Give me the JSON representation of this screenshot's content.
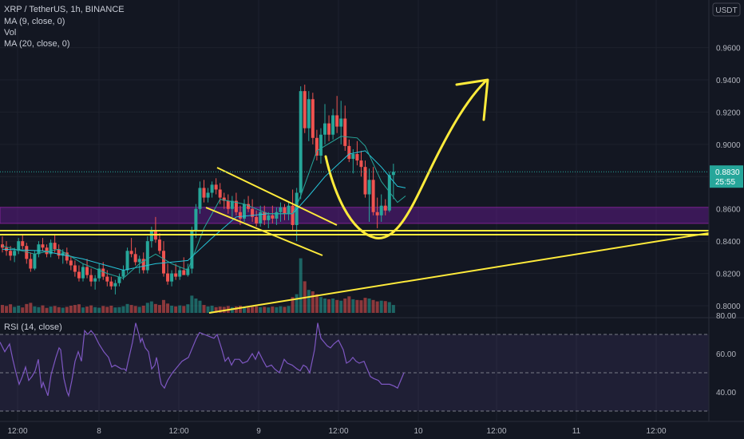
{
  "header": {
    "symbol": "XRP / TetherUS, 1h, BINANCE",
    "indicators": [
      "MA (9, close, 0)",
      "Vol",
      "MA (20, close, 0)"
    ]
  },
  "price_pane": {
    "currency": "USDT",
    "current_price": "0.8830",
    "countdown": "25:55",
    "yticks": [
      "0.9600",
      "0.9400",
      "0.9200",
      "0.9000",
      "0.8600",
      "0.8400",
      "0.8200",
      "0.8000"
    ]
  },
  "rsi_pane": {
    "title": "RSI (14, close)",
    "yticks": [
      "80.00",
      "60.00",
      "40.00"
    ]
  },
  "xaxis": {
    "ticks": [
      "12:00",
      "8",
      "12:00",
      "9",
      "12:00",
      "10",
      "12:00",
      "11",
      "12:00"
    ]
  },
  "colors": {
    "background": "#131722",
    "up": "#26a69a",
    "down": "#ef5350",
    "ma9": "#26a69a",
    "ma20": "#26c6da",
    "rsi": "#7e57c2",
    "zone": "#6a1b9a",
    "drawing": "#ffeb3b",
    "price_label_bg": "#26a69a"
  },
  "chart_data": [
    {
      "type": "candlestick",
      "title": "XRP / TetherUS, 1h, BINANCE",
      "ylim": [
        0.795,
        0.975
      ],
      "y_unit": "USDT",
      "x_ticks": [
        "12:00",
        "8",
        "12:00",
        "9",
        "12:00",
        "10",
        "12:00",
        "11",
        "12:00"
      ],
      "candles": [
        [
          0.838,
          0.843,
          0.833,
          0.836
        ],
        [
          0.836,
          0.84,
          0.831,
          0.834
        ],
        [
          0.834,
          0.837,
          0.828,
          0.831
        ],
        [
          0.831,
          0.836,
          0.827,
          0.834
        ],
        [
          0.834,
          0.842,
          0.832,
          0.84
        ],
        [
          0.84,
          0.844,
          0.835,
          0.837
        ],
        [
          0.837,
          0.839,
          0.826,
          0.829
        ],
        [
          0.829,
          0.833,
          0.821,
          0.823
        ],
        [
          0.823,
          0.834,
          0.822,
          0.832
        ],
        [
          0.832,
          0.84,
          0.83,
          0.838
        ],
        [
          0.838,
          0.842,
          0.834,
          0.836
        ],
        [
          0.836,
          0.838,
          0.83,
          0.832
        ],
        [
          0.832,
          0.841,
          0.83,
          0.839
        ],
        [
          0.839,
          0.844,
          0.833,
          0.835
        ],
        [
          0.835,
          0.838,
          0.829,
          0.831
        ],
        [
          0.831,
          0.835,
          0.826,
          0.833
        ],
        [
          0.833,
          0.836,
          0.826,
          0.828
        ],
        [
          0.828,
          0.831,
          0.822,
          0.825
        ],
        [
          0.825,
          0.828,
          0.818,
          0.821
        ],
        [
          0.821,
          0.825,
          0.815,
          0.817
        ],
        [
          0.817,
          0.826,
          0.815,
          0.824
        ],
        [
          0.824,
          0.829,
          0.817,
          0.819
        ],
        [
          0.819,
          0.823,
          0.812,
          0.815
        ],
        [
          0.815,
          0.819,
          0.81,
          0.817
        ],
        [
          0.817,
          0.826,
          0.815,
          0.823
        ],
        [
          0.823,
          0.827,
          0.816,
          0.818
        ],
        [
          0.818,
          0.822,
          0.812,
          0.815
        ],
        [
          0.815,
          0.818,
          0.81,
          0.812
        ],
        [
          0.812,
          0.816,
          0.807,
          0.814
        ],
        [
          0.814,
          0.82,
          0.812,
          0.818
        ],
        [
          0.818,
          0.825,
          0.816,
          0.822
        ],
        [
          0.822,
          0.836,
          0.82,
          0.834
        ],
        [
          0.834,
          0.842,
          0.83,
          0.832
        ],
        [
          0.832,
          0.836,
          0.825,
          0.827
        ],
        [
          0.827,
          0.831,
          0.82,
          0.829
        ],
        [
          0.829,
          0.833,
          0.82,
          0.822
        ],
        [
          0.822,
          0.843,
          0.82,
          0.84
        ],
        [
          0.84,
          0.849,
          0.836,
          0.846
        ],
        [
          0.846,
          0.855,
          0.839,
          0.841
        ],
        [
          0.841,
          0.845,
          0.832,
          0.834
        ],
        [
          0.834,
          0.84,
          0.818,
          0.82
        ],
        [
          0.82,
          0.826,
          0.813,
          0.815
        ],
        [
          0.815,
          0.822,
          0.812,
          0.82
        ],
        [
          0.82,
          0.826,
          0.816,
          0.818
        ],
        [
          0.818,
          0.824,
          0.816,
          0.822
        ],
        [
          0.822,
          0.83,
          0.82,
          0.819
        ],
        [
          0.819,
          0.826,
          0.818,
          0.823
        ],
        [
          0.823,
          0.849,
          0.82,
          0.846
        ],
        [
          0.846,
          0.863,
          0.842,
          0.86
        ],
        [
          0.86,
          0.877,
          0.857,
          0.873
        ],
        [
          0.873,
          0.878,
          0.864,
          0.867
        ],
        [
          0.867,
          0.873,
          0.864,
          0.87
        ],
        [
          0.87,
          0.877,
          0.867,
          0.875
        ],
        [
          0.875,
          0.879,
          0.869,
          0.872
        ],
        [
          0.872,
          0.876,
          0.863,
          0.867
        ],
        [
          0.867,
          0.87,
          0.86,
          0.865
        ],
        [
          0.865,
          0.869,
          0.857,
          0.86
        ],
        [
          0.86,
          0.868,
          0.855,
          0.865
        ],
        [
          0.865,
          0.87,
          0.856,
          0.858
        ],
        [
          0.858,
          0.862,
          0.85,
          0.854
        ],
        [
          0.854,
          0.866,
          0.852,
          0.863
        ],
        [
          0.863,
          0.868,
          0.858,
          0.86
        ],
        [
          0.86,
          0.866,
          0.852,
          0.855
        ],
        [
          0.855,
          0.859,
          0.849,
          0.851
        ],
        [
          0.851,
          0.862,
          0.849,
          0.858
        ],
        [
          0.858,
          0.862,
          0.85,
          0.853
        ],
        [
          0.853,
          0.858,
          0.848,
          0.856
        ],
        [
          0.856,
          0.862,
          0.851,
          0.854
        ],
        [
          0.854,
          0.861,
          0.85,
          0.858
        ],
        [
          0.858,
          0.864,
          0.852,
          0.861
        ],
        [
          0.861,
          0.863,
          0.853,
          0.857
        ],
        [
          0.857,
          0.864,
          0.853,
          0.862
        ],
        [
          0.862,
          0.872,
          0.846,
          0.85
        ],
        [
          0.85,
          0.873,
          0.84,
          0.87
        ],
        [
          0.87,
          0.936,
          0.866,
          0.933
        ],
        [
          0.933,
          0.937,
          0.907,
          0.91
        ],
        [
          0.91,
          0.933,
          0.902,
          0.928
        ],
        [
          0.928,
          0.932,
          0.9,
          0.904
        ],
        [
          0.904,
          0.909,
          0.89,
          0.893
        ],
        [
          0.893,
          0.91,
          0.888,
          0.906
        ],
        [
          0.906,
          0.925,
          0.9,
          0.913
        ],
        [
          0.913,
          0.918,
          0.902,
          0.906
        ],
        [
          0.906,
          0.922,
          0.903,
          0.918
        ],
        [
          0.918,
          0.93,
          0.907,
          0.911
        ],
        [
          0.911,
          0.927,
          0.9,
          0.916
        ],
        [
          0.916,
          0.924,
          0.896,
          0.899
        ],
        [
          0.899,
          0.903,
          0.889,
          0.891
        ],
        [
          0.891,
          0.897,
          0.882,
          0.894
        ],
        [
          0.894,
          0.902,
          0.887,
          0.89
        ],
        [
          0.89,
          0.896,
          0.88,
          0.886
        ],
        [
          0.886,
          0.89,
          0.867,
          0.869
        ],
        [
          0.869,
          0.885,
          0.852,
          0.878
        ],
        [
          0.878,
          0.886,
          0.856,
          0.858
        ],
        [
          0.858,
          0.867,
          0.848,
          0.856
        ],
        [
          0.856,
          0.869,
          0.852,
          0.862
        ],
        [
          0.862,
          0.866,
          0.856,
          0.859
        ],
        [
          0.859,
          0.883,
          0.858,
          0.881
        ],
        [
          0.881,
          0.888,
          0.866,
          0.883
        ]
      ],
      "volume": [
        0.55,
        0.48,
        0.6,
        0.42,
        0.5,
        0.38,
        0.62,
        0.7,
        0.45,
        0.4,
        0.52,
        0.35,
        0.44,
        0.48,
        0.4,
        0.36,
        0.42,
        0.5,
        0.55,
        0.6,
        0.38,
        0.44,
        0.52,
        0.4,
        0.36,
        0.48,
        0.42,
        0.5,
        0.38,
        0.4,
        0.46,
        0.62,
        0.55,
        0.48,
        0.42,
        0.5,
        0.7,
        0.8,
        0.62,
        0.55,
        0.9,
        0.65,
        0.5,
        0.45,
        0.52,
        0.48,
        0.6,
        1.2,
        1.0,
        0.85,
        0.55,
        0.45,
        0.5,
        0.4,
        0.44,
        0.42,
        0.48,
        0.4,
        0.45,
        0.5,
        0.42,
        0.38,
        0.44,
        0.46,
        0.4,
        0.42,
        0.38,
        0.44,
        0.4,
        0.46,
        0.42,
        0.48,
        1.1,
        1.3,
        3.8,
        2.2,
        1.6,
        1.5,
        1.3,
        1.1,
        1.0,
        0.95,
        1.0,
        0.9,
        0.85,
        1.0,
        1.15,
        0.95,
        0.9,
        0.88,
        1.05,
        1.0,
        0.9,
        0.8,
        0.85,
        0.82,
        0.75,
        0.55
      ],
      "ma9": [
        [
          0,
          0.837
        ],
        [
          8,
          0.832
        ],
        [
          14,
          0.835
        ],
        [
          20,
          0.826
        ],
        [
          26,
          0.82
        ],
        [
          30,
          0.817
        ],
        [
          34,
          0.826
        ],
        [
          38,
          0.832
        ],
        [
          42,
          0.826
        ],
        [
          46,
          0.822
        ],
        [
          50,
          0.848
        ],
        [
          54,
          0.866
        ],
        [
          60,
          0.863
        ],
        [
          66,
          0.857
        ],
        [
          72,
          0.857
        ],
        [
          74,
          0.868
        ],
        [
          78,
          0.896
        ],
        [
          84,
          0.905
        ],
        [
          88,
          0.904
        ],
        [
          90,
          0.899
        ],
        [
          94,
          0.877
        ],
        [
          98,
          0.864
        ],
        [
          100,
          0.868
        ]
      ],
      "ma20": [
        [
          0,
          0.835
        ],
        [
          10,
          0.834
        ],
        [
          20,
          0.829
        ],
        [
          30,
          0.822
        ],
        [
          38,
          0.826
        ],
        [
          46,
          0.828
        ],
        [
          52,
          0.842
        ],
        [
          58,
          0.855
        ],
        [
          66,
          0.857
        ],
        [
          72,
          0.857
        ],
        [
          76,
          0.868
        ],
        [
          80,
          0.88
        ],
        [
          86,
          0.894
        ],
        [
          90,
          0.896
        ],
        [
          94,
          0.886
        ],
        [
          98,
          0.874
        ],
        [
          100,
          0.873
        ]
      ],
      "annotations": {
        "support_zone": [
          0.851,
          0.861
        ],
        "horizontal_levels": [
          0.8465,
          0.844
        ]
      }
    },
    {
      "type": "line",
      "title": "RSI (14, close)",
      "ylim": [
        25,
        80
      ],
      "reference_levels": [
        70,
        50,
        30
      ],
      "values": [
        [
          0,
          66
        ],
        [
          6,
          61
        ],
        [
          12,
          65
        ],
        [
          16,
          57
        ],
        [
          20,
          50
        ],
        [
          24,
          44
        ],
        [
          28,
          48
        ],
        [
          32,
          53
        ],
        [
          36,
          46
        ],
        [
          40,
          48
        ],
        [
          44,
          51
        ],
        [
          48,
          57
        ],
        [
          52,
          42
        ],
        [
          54,
          45
        ],
        [
          60,
          38
        ],
        [
          64,
          49
        ],
        [
          70,
          58
        ],
        [
          74,
          63
        ],
        [
          76,
          62
        ],
        [
          80,
          47
        ],
        [
          84,
          40
        ],
        [
          86,
          38
        ],
        [
          90,
          46
        ],
        [
          94,
          56
        ],
        [
          98,
          61
        ],
        [
          102,
          56
        ],
        [
          106,
          72
        ],
        [
          110,
          70
        ],
        [
          114,
          72
        ],
        [
          118,
          70
        ],
        [
          124,
          65
        ],
        [
          130,
          61
        ],
        [
          136,
          58
        ],
        [
          140,
          53
        ],
        [
          144,
          54
        ],
        [
          148,
          53
        ],
        [
          152,
          52
        ],
        [
          156,
          52
        ],
        [
          158,
          51
        ],
        [
          160,
          55
        ],
        [
          166,
          66
        ],
        [
          170,
          76
        ],
        [
          174,
          70
        ],
        [
          176,
          66
        ],
        [
          178,
          68
        ],
        [
          182,
          63
        ],
        [
          186,
          61
        ],
        [
          190,
          52
        ],
        [
          194,
          54
        ],
        [
          196,
          58
        ],
        [
          198,
          54
        ],
        [
          200,
          48
        ],
        [
          202,
          44
        ],
        [
          206,
          42
        ],
        [
          210,
          46
        ],
        [
          216,
          50
        ],
        [
          220,
          52
        ],
        [
          224,
          54
        ],
        [
          228,
          56
        ],
        [
          232,
          57
        ],
        [
          236,
          58
        ],
        [
          240,
          62
        ],
        [
          246,
          68
        ],
        [
          250,
          71
        ],
        [
          256,
          70
        ],
        [
          262,
          69
        ],
        [
          268,
          68
        ],
        [
          272,
          70
        ],
        [
          278,
          62
        ],
        [
          282,
          56
        ],
        [
          286,
          58
        ],
        [
          290,
          54
        ],
        [
          294,
          57
        ],
        [
          300,
          57
        ],
        [
          304,
          55
        ],
        [
          310,
          56
        ],
        [
          316,
          60
        ],
        [
          320,
          57
        ],
        [
          324,
          61
        ],
        [
          330,
          56
        ],
        [
          334,
          53
        ],
        [
          340,
          54
        ],
        [
          344,
          52
        ],
        [
          350,
          50
        ],
        [
          356,
          57
        ],
        [
          360,
          55
        ],
        [
          366,
          54
        ],
        [
          372,
          52
        ],
        [
          376,
          51
        ],
        [
          380,
          54
        ],
        [
          384,
          53
        ],
        [
          388,
          50
        ],
        [
          394,
          62
        ],
        [
          398,
          76
        ],
        [
          402,
          68
        ],
        [
          406,
          66
        ],
        [
          410,
          64
        ],
        [
          414,
          63
        ],
        [
          418,
          65
        ],
        [
          424,
          67
        ],
        [
          430,
          62
        ],
        [
          434,
          55
        ],
        [
          438,
          56
        ],
        [
          442,
          58
        ],
        [
          446,
          56
        ],
        [
          450,
          55
        ],
        [
          456,
          56
        ],
        [
          460,
          52
        ],
        [
          464,
          48
        ],
        [
          468,
          47
        ],
        [
          474,
          46
        ],
        [
          478,
          44
        ],
        [
          484,
          44
        ],
        [
          488,
          44
        ],
        [
          494,
          43
        ],
        [
          498,
          42
        ],
        [
          502,
          46
        ],
        [
          506,
          50
        ]
      ]
    }
  ]
}
